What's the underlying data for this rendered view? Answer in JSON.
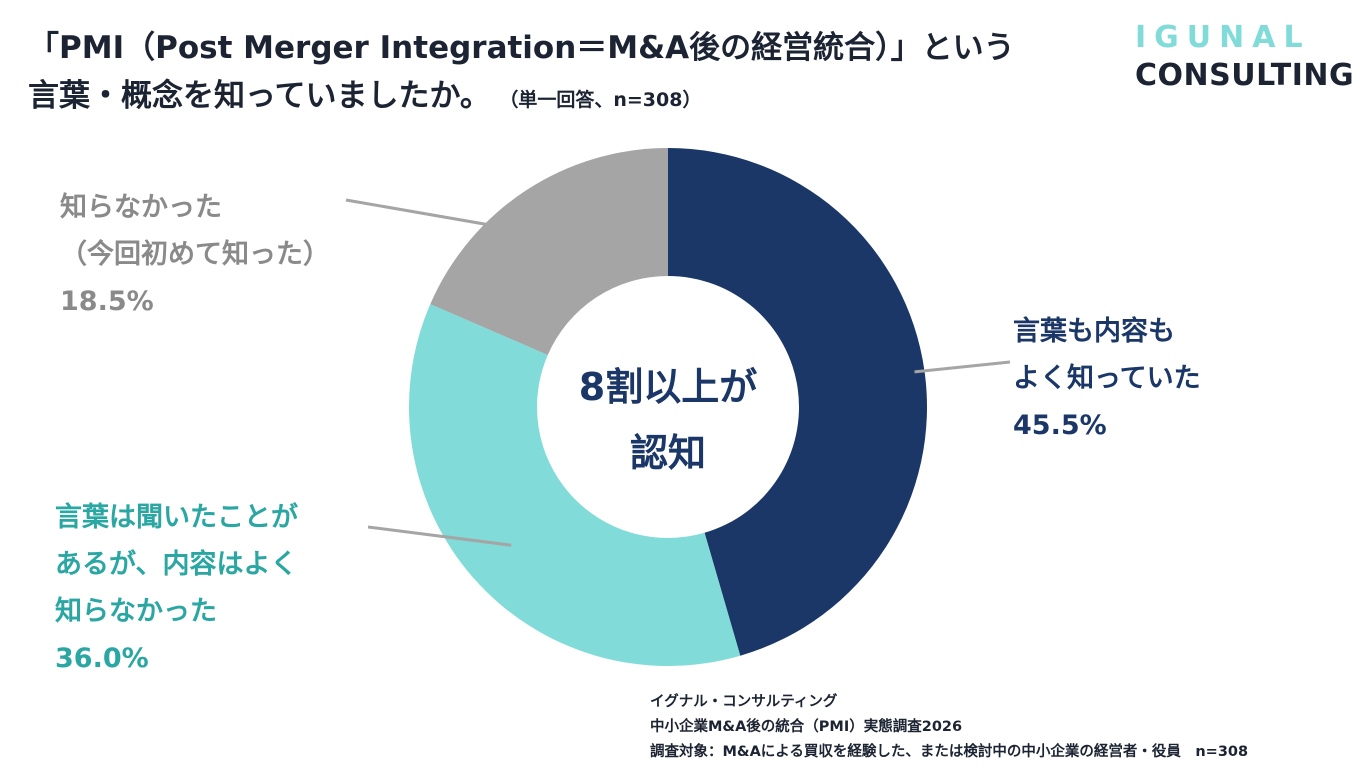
{
  "header": {
    "title_line1": "「PMI（Post Merger Integration＝M&A後の経営統合）」という",
    "title_line2": "言葉・概念を知っていましたか。",
    "title_note": "（単一回答、n=308）"
  },
  "brand": {
    "top": "IGUNAL",
    "bottom": "CONSULTING"
  },
  "center_text": {
    "line1": "8割以上が",
    "line2": "認知"
  },
  "chart_data": {
    "type": "pie",
    "donut": true,
    "start_angle": "12 o'clock",
    "direction": "clockwise",
    "legend": "none",
    "slices": [
      {
        "label_lines": [
          "言葉も内容も",
          "よく知っていた"
        ],
        "value": 45.5,
        "value_label": "45.5%",
        "color": "#1b3767"
      },
      {
        "label_lines": [
          "言葉は聞いたことが",
          "あるが、内容はよく",
          "知らなかった"
        ],
        "value": 36.0,
        "value_label": "36.0%",
        "color": "#80dbd9"
      },
      {
        "label_lines": [
          "知らなかった",
          "（今回初めて知った）"
        ],
        "value": 18.5,
        "value_label": "18.5%",
        "color": "#a5a5a5"
      }
    ]
  },
  "source": {
    "line1": "イグナル・コンサルティング",
    "line2": "中小企業M&A後の統合（PMI）実態調査2026",
    "line3": "調査対象：M&Aによる買収を経験した、または検討中の中小企業の経営者・役員　n=308"
  }
}
